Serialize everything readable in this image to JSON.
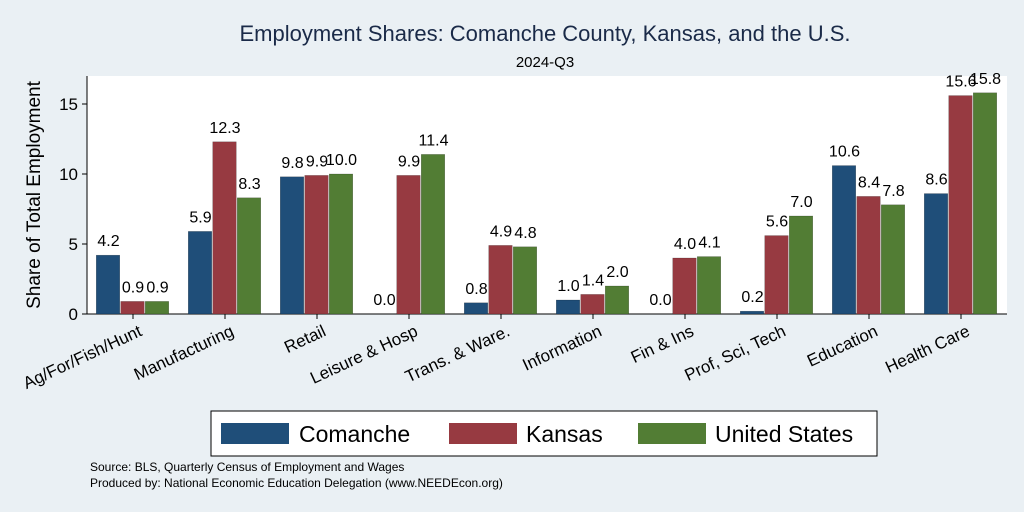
{
  "chart_data": {
    "type": "bar",
    "title": "Employment Shares: Comanche County, Kansas, and the U.S.",
    "subtitle": "2024-Q3",
    "ylabel": "Share of Total Employment",
    "xlabel": "",
    "ylim": [
      0,
      17
    ],
    "yticks": [
      "0",
      "5",
      "10",
      "15"
    ],
    "grid": false,
    "legend_position": "bottom",
    "categories": [
      "Ag/For/Fish/Hunt",
      "Manufacturing",
      "Retail",
      "Leisure & Hosp",
      "Trans. & Ware.",
      "Information",
      "Fin & Ins",
      "Prof, Sci, Tech",
      "Education",
      "Health Care"
    ],
    "series": [
      {
        "name": "Comanche",
        "color": "#1f4e79",
        "values": [
          4.2,
          5.9,
          9.8,
          0.0,
          0.8,
          1.0,
          0.0,
          0.2,
          10.6,
          8.6
        ],
        "labels": [
          "4.2",
          "5.9",
          "9.8",
          "0.0",
          "0.8",
          "1.0",
          "0.0",
          "0.2",
          "10.6",
          "8.6"
        ]
      },
      {
        "name": "Kansas",
        "color": "#973a41",
        "values": [
          0.9,
          12.3,
          9.9,
          9.9,
          4.9,
          1.4,
          4.0,
          5.6,
          8.4,
          15.6
        ],
        "labels": [
          "0.9",
          "12.3",
          "9.9",
          "9.9",
          "4.9",
          "1.4",
          "4.0",
          "5.6",
          "8.4",
          "15.6"
        ]
      },
      {
        "name": "United States",
        "color": "#527d34",
        "values": [
          0.9,
          8.3,
          10.0,
          11.4,
          4.8,
          2.0,
          4.1,
          7.0,
          7.8,
          15.8
        ],
        "labels": [
          "0.9",
          "8.3",
          "10.0",
          "11.4",
          "4.8",
          "2.0",
          "4.1",
          "7.0",
          "7.8",
          "15.8"
        ]
      }
    ],
    "notes": [
      "Source: BLS, Quarterly Census of Employment and Wages",
      "Produced by: National Economic Education Delegation (www.NEEDEcon.org)"
    ]
  }
}
